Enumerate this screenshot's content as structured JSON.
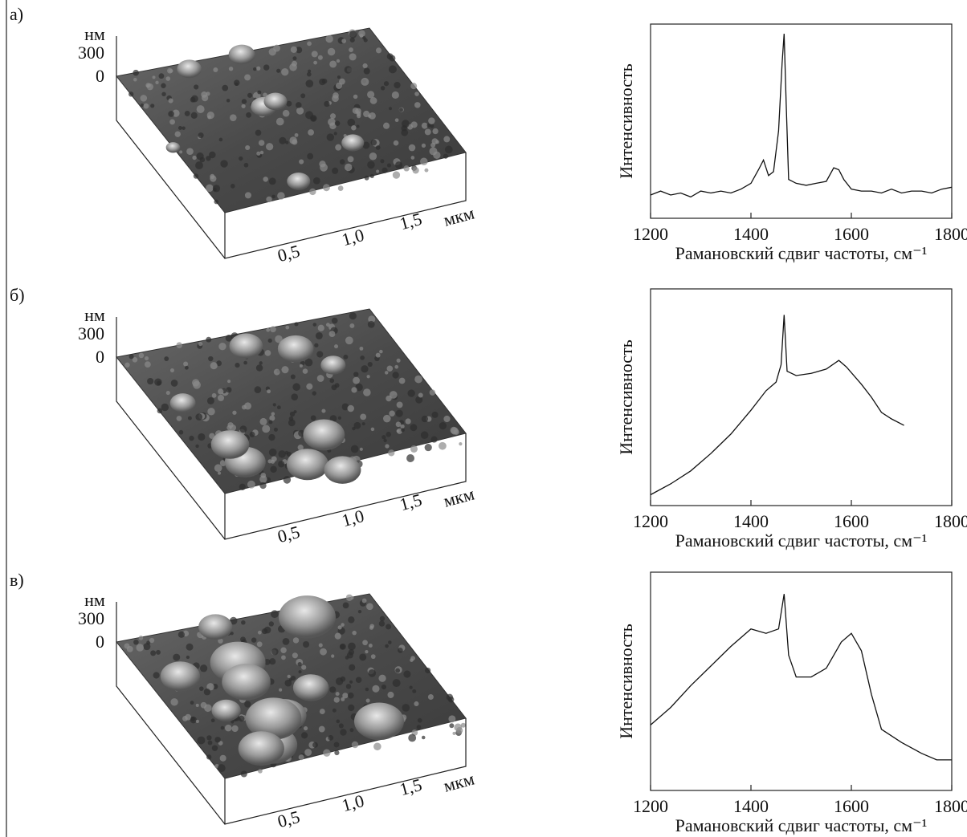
{
  "panel_labels": [
    "а)",
    "б)",
    "в)"
  ],
  "afm": [
    {
      "z_unit": "нм",
      "zticks": [
        "300",
        "0"
      ],
      "x_unit": "мкм",
      "xticks": [
        "0,5",
        "1,0",
        "1,5"
      ]
    },
    {
      "z_unit": "нм",
      "zticks": [
        "300",
        "0"
      ],
      "x_unit": "мкм",
      "xticks": [
        "0,5",
        "1,0",
        "1,5"
      ]
    },
    {
      "z_unit": "нм",
      "zticks": [
        "300",
        "0"
      ],
      "x_unit": "мкм",
      "xticks": [
        "0,5",
        "1,0",
        "1,5"
      ]
    }
  ],
  "chart_data": [
    {
      "type": "line",
      "y_label": "Интенсивность",
      "x_label": "Рамановский сдвиг частоты, см⁻¹",
      "color": "#111111",
      "x": [
        1200,
        1220,
        1240,
        1260,
        1280,
        1300,
        1320,
        1340,
        1360,
        1380,
        1400,
        1415,
        1425,
        1435,
        1445,
        1455,
        1462,
        1466,
        1470,
        1475,
        1490,
        1510,
        1530,
        1550,
        1565,
        1575,
        1585,
        1600,
        1620,
        1640,
        1660,
        1680,
        1700,
        1720,
        1740,
        1760,
        1780,
        1800
      ],
      "values": [
        12,
        14,
        12,
        13,
        11,
        14,
        13,
        14,
        13,
        15,
        18,
        25,
        30,
        22,
        24,
        45,
        80,
        95,
        60,
        20,
        18,
        17,
        18,
        19,
        26,
        25,
        20,
        15,
        14,
        14,
        13,
        15,
        13,
        14,
        14,
        13,
        15,
        16
      ],
      "xlim": [
        1200,
        1800
      ],
      "xticks": [
        1200,
        1400,
        1600,
        1800
      ],
      "ylim": [
        0,
        100
      ]
    },
    {
      "type": "line",
      "y_label": "Интенсивность",
      "x_label": "Рамановский сдвиг частоты, см⁻¹",
      "color": "#111111",
      "x": [
        1200,
        1240,
        1280,
        1320,
        1360,
        1400,
        1430,
        1450,
        1460,
        1466,
        1472,
        1490,
        1520,
        1550,
        1575,
        1590,
        1620,
        1640,
        1660,
        1680,
        1705
      ],
      "values": [
        5,
        10,
        16,
        24,
        33,
        44,
        53,
        57,
        65,
        88,
        62,
        60,
        61,
        63,
        67,
        64,
        56,
        50,
        43,
        40,
        37
      ],
      "xlim": [
        1200,
        1800
      ],
      "xticks": [
        1200,
        1400,
        1600,
        1800
      ],
      "ylim": [
        0,
        100
      ]
    },
    {
      "type": "line",
      "y_label": "Интенсивность",
      "x_label": "Рамановский сдвиг частоты, см⁻¹",
      "color": "#111111",
      "x": [
        1200,
        1240,
        1280,
        1320,
        1360,
        1400,
        1430,
        1455,
        1466,
        1475,
        1490,
        1520,
        1550,
        1580,
        1600,
        1620,
        1640,
        1660,
        1700,
        1740,
        1770,
        1800
      ],
      "values": [
        30,
        38,
        48,
        57,
        66,
        74,
        72,
        74,
        90,
        62,
        52,
        52,
        56,
        68,
        72,
        64,
        44,
        28,
        22,
        17,
        14,
        14
      ],
      "xlim": [
        1200,
        1800
      ],
      "xticks": [
        1200,
        1400,
        1600,
        1800
      ],
      "ylim": [
        0,
        100
      ]
    }
  ]
}
